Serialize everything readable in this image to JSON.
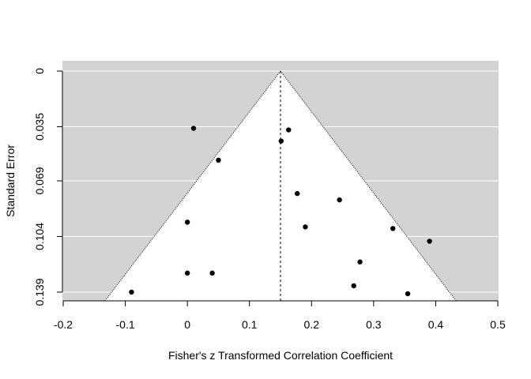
{
  "chart_data": {
    "type": "scatter",
    "title": "",
    "xlabel": "Fisher's z Transformed Correlation Coefficient",
    "ylabel": "Standard Error",
    "xlim": [
      -0.2,
      0.5
    ],
    "ylim": [
      0.139,
      0
    ],
    "y_axis_reversed": true,
    "x_ticks": [
      -0.2,
      -0.1,
      0,
      0.1,
      0.2,
      0.3,
      0.4,
      0.5
    ],
    "x_tick_labels": [
      "-0.2",
      "-0.1",
      "0",
      "0.1",
      "0.2",
      "0.3",
      "0.4",
      "0.5"
    ],
    "y_ticks": [
      0,
      0.035,
      0.069,
      0.104,
      0.139
    ],
    "y_tick_labels": [
      "0",
      "0.035",
      "0.069",
      "0.104",
      "0.139"
    ],
    "grid": "horizontal at y ticks",
    "background_color": "#d3d3d3",
    "funnel_fill": "#ffffff",
    "pooled_estimate": 0.15,
    "funnel_lines": [
      {
        "x": [
          0.15,
          -0.122
        ],
        "y": [
          0,
          0.139
        ]
      },
      {
        "x": [
          0.15,
          0.422
        ],
        "y": [
          0,
          0.139
        ]
      }
    ],
    "points": [
      {
        "x": 0.01,
        "y": 0.036
      },
      {
        "x": 0.163,
        "y": 0.037
      },
      {
        "x": 0.151,
        "y": 0.044
      },
      {
        "x": 0.05,
        "y": 0.056
      },
      {
        "x": 0.177,
        "y": 0.077
      },
      {
        "x": 0.245,
        "y": 0.081
      },
      {
        "x": 0.0,
        "y": 0.095
      },
      {
        "x": 0.19,
        "y": 0.098
      },
      {
        "x": 0.331,
        "y": 0.099
      },
      {
        "x": 0.39,
        "y": 0.107
      },
      {
        "x": 0.278,
        "y": 0.12
      },
      {
        "x": 0.0,
        "y": 0.127
      },
      {
        "x": 0.04,
        "y": 0.127
      },
      {
        "x": 0.268,
        "y": 0.135
      },
      {
        "x": -0.09,
        "y": 0.139
      },
      {
        "x": 0.355,
        "y": 0.14
      }
    ]
  }
}
